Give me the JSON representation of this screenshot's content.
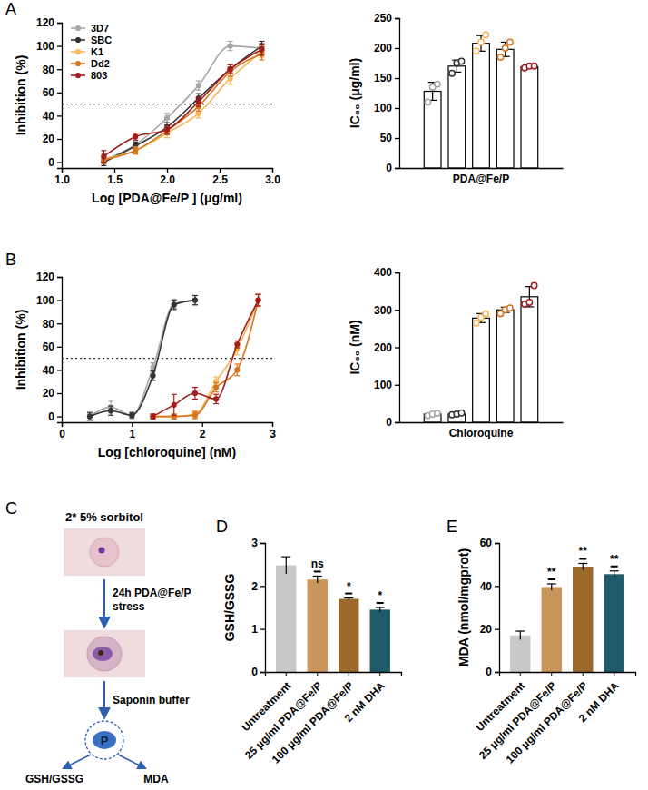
{
  "chart_data": [
    {
      "type": "line",
      "panel": "A",
      "x_label": "Log [PDA@Fe/P ] (μg/ml)",
      "y_label": "Inhibition (%)",
      "xlim": [
        1.0,
        3.0
      ],
      "xticks": [
        {
          "value": 1.0,
          "label": "1.0"
        },
        {
          "value": 1.5,
          "label": "1.5"
        },
        {
          "value": 2.0,
          "label": "2.0"
        },
        {
          "value": 2.5,
          "label": "2.5"
        },
        {
          "value": 3.0,
          "label": "3.0"
        }
      ],
      "ylim": [
        -5,
        120
      ],
      "yticks": [
        0,
        20,
        40,
        60,
        80,
        100,
        120
      ],
      "threshold": 50,
      "legend": "upper left",
      "marker": "circle",
      "series": [
        {
          "name": "3D7",
          "color": "#a6a6a6",
          "x": [
            1.4,
            1.7,
            2.0,
            2.3,
            2.6,
            2.9
          ],
          "values": [
            2,
            15,
            38,
            66,
            100,
            98
          ],
          "errors": [
            3,
            3,
            4,
            4,
            4,
            3
          ]
        },
        {
          "name": "SBC",
          "color": "#333333",
          "x": [
            1.4,
            1.7,
            2.0,
            2.3,
            2.6,
            2.9
          ],
          "values": [
            0,
            14,
            30,
            55,
            80,
            100
          ],
          "errors": [
            3,
            3,
            4,
            4,
            4,
            4
          ]
        },
        {
          "name": "K1",
          "color": "#f7b75a",
          "x": [
            1.4,
            1.7,
            2.0,
            2.3,
            2.6,
            2.9
          ],
          "values": [
            3,
            10,
            25,
            42,
            72,
            95
          ],
          "errors": [
            4,
            3,
            4,
            4,
            5,
            5
          ]
        },
        {
          "name": "Dd2",
          "color": "#d6751f",
          "x": [
            1.4,
            1.7,
            2.0,
            2.3,
            2.6,
            2.9
          ],
          "values": [
            2,
            10,
            27,
            48,
            78,
            93
          ],
          "errors": [
            3,
            3,
            3,
            4,
            4,
            5
          ]
        },
        {
          "name": "803",
          "color": "#a51c1c",
          "x": [
            1.4,
            1.7,
            2.0,
            2.3,
            2.6,
            2.9
          ],
          "values": [
            5,
            22,
            28,
            52,
            80,
            97
          ],
          "errors": [
            5,
            3,
            4,
            4,
            4,
            5
          ]
        }
      ]
    },
    {
      "type": "bar",
      "y_label": "IC₅₀ (μg/ml)",
      "categories": [
        "PDA@Fe/P"
      ],
      "ylim": [
        0,
        250
      ],
      "yticks": [
        0,
        50,
        100,
        150,
        200,
        250
      ],
      "color": "#ffffff",
      "series": [
        {
          "color": "#a6a6a6",
          "values": [
            128
          ],
          "errors": [
            15
          ],
          "replicates": [
            [
              110,
              135,
              140
            ]
          ]
        },
        {
          "color": "#333333",
          "values": [
            170
          ],
          "errors": [
            10
          ],
          "replicates": [
            [
              158,
              175,
              178
            ]
          ]
        },
        {
          "color": "#f7b75a",
          "values": [
            208
          ],
          "errors": [
            13
          ],
          "replicates": [
            [
              195,
              210,
              222
            ]
          ]
        },
        {
          "color": "#d6751f",
          "values": [
            198
          ],
          "errors": [
            12
          ],
          "replicates": [
            [
              185,
              200,
              210
            ]
          ]
        },
        {
          "color": "#a51c1c",
          "values": [
            169
          ],
          "errors": [
            2
          ],
          "replicates": [
            [
              167,
              170,
              170
            ]
          ]
        }
      ]
    },
    {
      "type": "line",
      "panel": "B",
      "x_label": "Log [chloroquine] (nM)",
      "y_label": "Inhibition (%)",
      "xlim": [
        0,
        3
      ],
      "xticks": [
        0,
        1,
        2,
        3
      ],
      "ylim": [
        -5,
        120
      ],
      "yticks": [
        0,
        20,
        40,
        60,
        80,
        100,
        120
      ],
      "threshold": 50,
      "marker": "circle",
      "series": [
        {
          "color": "#a6a6a6",
          "x": [
            0.4,
            0.7,
            1.0,
            1.3,
            1.6,
            1.9
          ],
          "values": [
            0,
            8,
            1,
            42,
            97,
            100
          ],
          "errors": [
            4,
            5,
            3,
            4,
            4,
            4
          ]
        },
        {
          "color": "#333333",
          "x": [
            0.4,
            0.7,
            1.0,
            1.3,
            1.6,
            1.9
          ],
          "values": [
            0,
            5,
            1,
            35,
            96,
            100
          ],
          "errors": [
            3,
            4,
            2,
            4,
            4,
            4
          ]
        },
        {
          "color": "#f7b75a",
          "x": [
            1.3,
            1.6,
            1.9,
            2.2,
            2.5,
            2.8
          ],
          "values": [
            0,
            0,
            2,
            30,
            58,
            100
          ],
          "errors": [
            2,
            2,
            3,
            4,
            5,
            5
          ]
        },
        {
          "color": "#d6751f",
          "x": [
            1.3,
            1.6,
            1.9,
            2.2,
            2.5,
            2.8
          ],
          "values": [
            0,
            0,
            1,
            25,
            40,
            100
          ],
          "errors": [
            2,
            2,
            3,
            4,
            5,
            5
          ]
        },
        {
          "color": "#a51c1c",
          "x": [
            1.3,
            1.6,
            1.9,
            2.2,
            2.5,
            2.8
          ],
          "values": [
            0,
            10,
            20,
            15,
            62,
            100
          ],
          "errors": [
            2,
            9,
            5,
            4,
            3,
            5
          ]
        }
      ]
    },
    {
      "type": "bar",
      "y_label": "IC₅₀ (nM)",
      "categories": [
        "Chloroquine"
      ],
      "ylim": [
        0,
        400
      ],
      "yticks": [
        0,
        100,
        200,
        300,
        400
      ],
      "color": "#ffffff",
      "series": [
        {
          "color": "#a6a6a6",
          "values": [
            22
          ],
          "errors": [
            3
          ],
          "replicates": [
            [
              18,
              22,
              24
            ]
          ]
        },
        {
          "color": "#333333",
          "values": [
            22
          ],
          "errors": [
            3
          ],
          "replicates": [
            [
              20,
              22,
              25
            ]
          ]
        },
        {
          "color": "#f7b75a",
          "values": [
            278
          ],
          "errors": [
            12
          ],
          "replicates": [
            [
              265,
              280,
              290
            ]
          ]
        },
        {
          "color": "#d6751f",
          "values": [
            300
          ],
          "errors": [
            7
          ],
          "replicates": [
            [
              290,
              300,
              305
            ]
          ]
        },
        {
          "color": "#a51c1c",
          "values": [
            335
          ],
          "errors": [
            27
          ],
          "replicates": [
            [
              315,
              320,
              365
            ]
          ]
        }
      ]
    },
    {
      "type": "bar",
      "panel": "D",
      "y_label": "GSH/GSSG",
      "categories": [
        "Untreatment",
        "25 μg/ml PDA@Fe/P",
        "100 μg/ml PDA@Fe/P",
        "2 nM DHA"
      ],
      "values": [
        2.48,
        2.15,
        1.7,
        1.45
      ],
      "errors": [
        0.2,
        0.08,
        0.02,
        0.05
      ],
      "colors": [
        "#c8c8c8",
        "#c8955a",
        "#9b6a2a",
        "#1f5a6b"
      ],
      "significance": [
        null,
        "ns",
        "*",
        "*"
      ],
      "ylim": [
        0,
        3
      ],
      "yticks": [
        0,
        1,
        2,
        3
      ]
    },
    {
      "type": "bar",
      "panel": "E",
      "y_label": "MDA (nmol/mgprot)",
      "categories": [
        "Untreatment",
        "25 μg/ml PDA@Fe/P",
        "100 μg/ml PDA@Fe/P",
        "2 nM DHA"
      ],
      "values": [
        17,
        39.5,
        49,
        45.5
      ],
      "errors": [
        2,
        1.5,
        1.5,
        1.5
      ],
      "colors": [
        "#c8c8c8",
        "#c8955a",
        "#9b6a2a",
        "#1f5a6b"
      ],
      "significance": [
        null,
        "**",
        "**",
        "**"
      ],
      "ylim": [
        0,
        60
      ],
      "yticks": [
        0,
        20,
        40,
        60
      ]
    }
  ],
  "diagram": {
    "panel": "C",
    "steps": [
      "2* 5% sorbitol",
      "24h PDA@Fe/P stress",
      "Saponin buffer"
    ],
    "parasite": "P",
    "outputs": [
      "GSH/GSSG",
      "MDA"
    ]
  }
}
